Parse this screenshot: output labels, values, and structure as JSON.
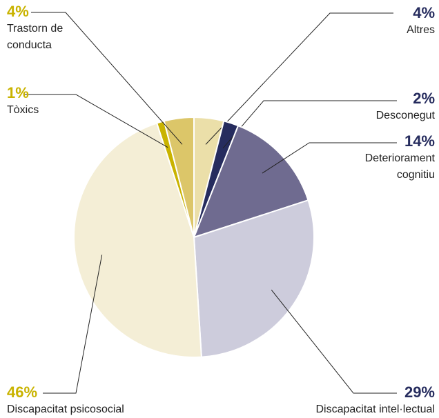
{
  "chart_data": {
    "type": "pie",
    "categories": [
      "Altres",
      "Desconegut",
      "Deteriorament cognitiu",
      "Discapacitat intel·lectual",
      "Discapacitat psicosocial",
      "Tòxics",
      "Trastorn de conducta"
    ],
    "values": [
      4,
      2,
      14,
      29,
      46,
      1,
      4
    ],
    "value_labels": [
      "4%",
      "2%",
      "14%",
      "29%",
      "46%",
      "1%",
      "4%"
    ],
    "colors": [
      "#ebdfa9",
      "#262c5e",
      "#6f6b90",
      "#cdccdc",
      "#f4eed6",
      "#c9b300",
      "#dcc669"
    ]
  }
}
